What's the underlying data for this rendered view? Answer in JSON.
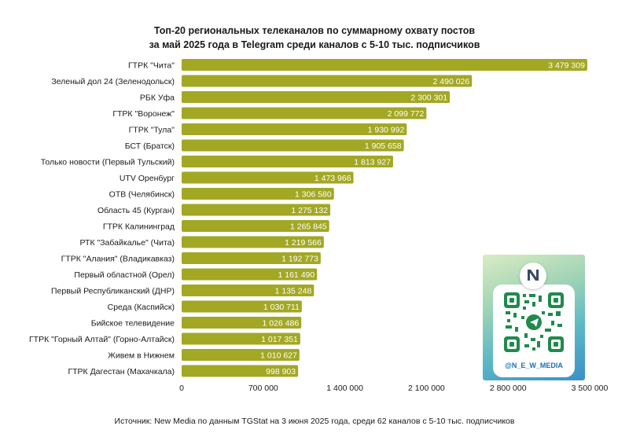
{
  "title_line1": "Топ-20 региональных телеканалов по суммарному охвату постов",
  "title_line2": "за май 2025 года в Telegram среди каналов с 5-10 тыс. подписчиков",
  "source": "Источник: New Media по данным TGStat на 3 июня 2025 года, среди 62 каналов с 5-10 тыс. подписчиков",
  "qr": {
    "handle": "@N_E_W_MEDIA",
    "logo_text": "New Media"
  },
  "chart_data": {
    "type": "bar",
    "orientation": "horizontal",
    "bar_color": "#a2a824",
    "xlim": [
      0,
      3500000
    ],
    "grid": false,
    "tick_labels": [
      "0",
      "700 000",
      "1 400 000",
      "2 100 000",
      "2 800 000",
      "3 500 000"
    ],
    "categories": [
      "ГТРК \"Чита\"",
      "Зеленый дол 24 (Зеленодольск)",
      "РБК Уфа",
      "ГТРК \"Воронеж\"",
      "ГТРК \"Тула\"",
      "БСТ (Братск)",
      "Только новости (Первый Тульский)",
      "UTV Оренбург",
      "ОТВ (Челябинск)",
      "Область 45 (Курган)",
      "ГТРК Калининград",
      "РТК \"Забайкалье\" (Чита)",
      "ГТРК \"Алания\" (Владикавказ)",
      "Первый областной (Орел)",
      "Первый Республиканский (ДНР)",
      "Среда (Каспийск)",
      "Бийское телевидение",
      "ГТРК \"Горный Алтай\" (Горно-Алтайск)",
      "Живем в Нижнем",
      "ГТРК Дагестан (Махачкала)"
    ],
    "values": [
      3479309,
      2490026,
      2300301,
      2099772,
      1930992,
      1905658,
      1813927,
      1473966,
      1306580,
      1275132,
      1265845,
      1219566,
      1192773,
      1161490,
      1135248,
      1030711,
      1026486,
      1017351,
      1010627,
      998903
    ],
    "value_labels": [
      "3 479 309",
      "2 490 026",
      "2 300 301",
      "2 099 772",
      "1 930 992",
      "1 905 658",
      "1 813 927",
      "1 473 966",
      "1 306 580",
      "1 275 132",
      "1 265 845",
      "1 219 566",
      "1 192 773",
      "1 161 490",
      "1 135 248",
      "1 030 711",
      "1 026 486",
      "1 017 351",
      "1 010 627",
      "998 903"
    ]
  }
}
